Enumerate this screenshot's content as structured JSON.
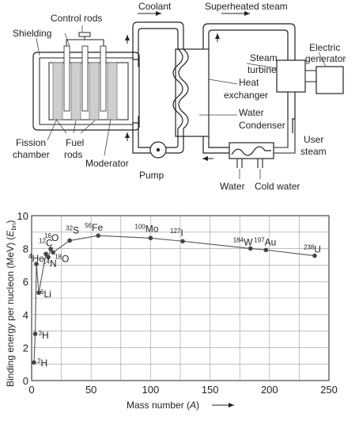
{
  "diagram": {
    "labels": {
      "control_rods": "Control rods",
      "shielding": "Shielding",
      "coolant": "Coolant",
      "superheated_steam": "Superheated steam",
      "electric_generator_1": "Electric",
      "electric_generator_2": "generator",
      "steam_turbine_1": "Steam",
      "steam_turbine_2": "turbine",
      "heat_exchanger_1": "Heat",
      "heat_exchanger_2": "exchanger",
      "water": "Water",
      "condenser": "Condenser",
      "fission_chamber_1": "Fission",
      "fission_chamber_2": "chamber",
      "fuel_rods_1": "Fuel",
      "fuel_rods_2": "rods",
      "moderator": "Moderator",
      "pump": "Pump",
      "user_steam_1": "User",
      "user_steam_2": "steam",
      "water_out": "Water",
      "cold_water": "Cold water"
    }
  },
  "chart_data": {
    "type": "scatter",
    "xlabel_main": "Mass number (",
    "xlabel_var": "A",
    "xlabel_end": ")",
    "ylabel_main": "Binding energy per nucleon (MeV) (",
    "ylabel_var": "E",
    "ylabel_sub": "bn",
    "ylabel_end": ")",
    "xlim": [
      0,
      250
    ],
    "ylim": [
      0,
      10
    ],
    "xticks": [
      0,
      50,
      100,
      150,
      200,
      250
    ],
    "yticks": [
      0,
      2,
      4,
      6,
      8,
      10
    ],
    "grid": true,
    "points": [
      {
        "mass": "2",
        "symbol": "H",
        "x": 2,
        "y": 1.1
      },
      {
        "mass": "3",
        "symbol": "H",
        "x": 3,
        "y": 2.83
      },
      {
        "mass": "4",
        "symbol": "He",
        "x": 4,
        "y": 7.07
      },
      {
        "mass": "6",
        "symbol": "Li",
        "x": 6,
        "y": 5.33
      },
      {
        "mass": "12",
        "symbol": "C",
        "x": 12,
        "y": 7.68
      },
      {
        "mass": "14",
        "symbol": "N",
        "x": 14,
        "y": 7.48
      },
      {
        "mass": "16",
        "symbol": "O",
        "x": 16,
        "y": 7.98
      },
      {
        "mass": "18",
        "symbol": "O",
        "x": 18,
        "y": 7.77
      },
      {
        "mass": "32",
        "symbol": "S",
        "x": 32,
        "y": 8.49
      },
      {
        "mass": "56",
        "symbol": "Fe",
        "x": 56,
        "y": 8.79
      },
      {
        "mass": "100",
        "symbol": "Mo",
        "x": 100,
        "y": 8.64
      },
      {
        "mass": "127",
        "symbol": "I",
        "x": 127,
        "y": 8.45
      },
      {
        "mass": "184",
        "symbol": "W",
        "x": 184,
        "y": 8.01
      },
      {
        "mass": "197",
        "symbol": "Au",
        "x": 197,
        "y": 7.92
      },
      {
        "mass": "238",
        "symbol": "U",
        "x": 238,
        "y": 7.57
      }
    ]
  }
}
